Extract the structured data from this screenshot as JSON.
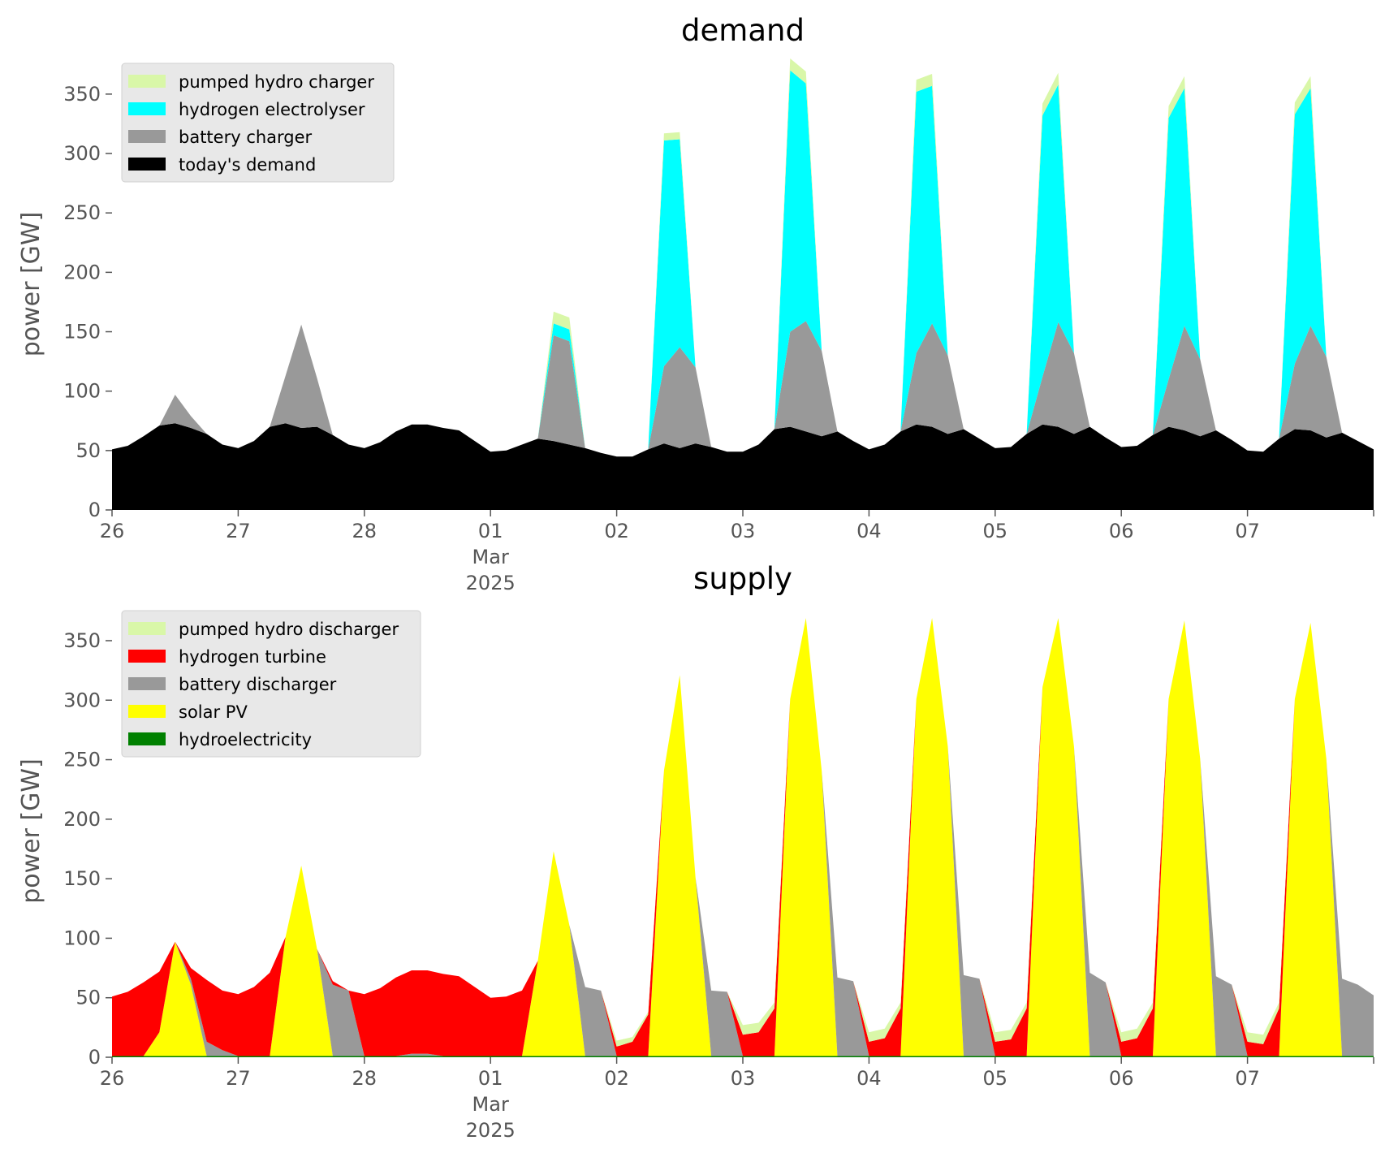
{
  "chart_data": [
    {
      "type": "area",
      "title": "demand",
      "ylabel": "power [GW]",
      "xlabel": "",
      "ylim": [
        0,
        380
      ],
      "yticks": [
        0,
        50,
        100,
        150,
        200,
        250,
        300,
        350
      ],
      "xlim": [
        "2025-02-26",
        "2025-03-08"
      ],
      "xticks": [
        {
          "date": "2025-02-26",
          "label": "26"
        },
        {
          "date": "2025-02-27",
          "label": "27"
        },
        {
          "date": "2025-02-28",
          "label": "28"
        },
        {
          "date": "2025-03-01",
          "label": "01",
          "sub1": "Mar",
          "sub2": "2025"
        },
        {
          "date": "2025-03-02",
          "label": "02"
        },
        {
          "date": "2025-03-03",
          "label": "03"
        },
        {
          "date": "2025-03-04",
          "label": "04"
        },
        {
          "date": "2025-03-05",
          "label": "05"
        },
        {
          "date": "2025-03-06",
          "label": "06"
        },
        {
          "date": "2025-03-07",
          "label": "07"
        }
      ],
      "grid": false,
      "legend_position": "top-left",
      "legend": [
        "pumped hydro charger",
        "hydrogen electrolyser",
        "battery charger",
        "today's demand"
      ],
      "x_date_start": "2025-02-26",
      "x_step_hours": 3,
      "series": [
        {
          "name": "today's demand",
          "color": "#000000",
          "values": [
            51,
            54,
            62,
            71,
            73,
            69,
            64,
            55,
            52,
            58,
            70,
            73,
            69,
            70,
            63,
            55,
            52,
            57,
            66,
            72,
            72,
            69,
            67,
            58,
            49,
            50,
            55,
            60,
            58,
            55,
            52,
            48,
            45,
            45,
            51,
            56,
            52,
            56,
            53,
            49,
            49,
            55,
            68,
            70,
            66,
            62,
            66,
            58,
            51,
            55,
            66,
            72,
            70,
            64,
            68,
            60,
            52,
            53,
            64,
            72,
            70,
            64,
            70,
            61,
            53,
            54,
            63,
            70,
            67,
            62,
            67,
            59,
            50,
            49,
            60,
            68,
            67,
            61,
            65,
            58,
            51
          ]
        },
        {
          "name": "battery charger",
          "color": "#999999",
          "values": [
            0,
            0,
            0,
            0,
            24,
            10,
            0,
            0,
            0,
            0,
            0,
            40,
            87,
            41,
            0,
            0,
            0,
            0,
            0,
            0,
            0,
            0,
            0,
            0,
            0,
            0,
            0,
            0,
            89,
            87,
            0,
            0,
            0,
            0,
            0,
            65,
            85,
            64,
            0,
            0,
            0,
            0,
            0,
            80,
            93,
            72,
            0,
            0,
            0,
            0,
            0,
            60,
            87,
            66,
            0,
            0,
            0,
            0,
            0,
            40,
            88,
            68,
            0,
            0,
            0,
            0,
            0,
            40,
            88,
            65,
            0,
            0,
            0,
            0,
            0,
            55,
            88,
            68,
            0,
            0,
            0
          ]
        },
        {
          "name": "hydrogen electrolyser",
          "color": "#00ffff",
          "values": [
            0,
            0,
            0,
            0,
            0,
            0,
            0,
            0,
            0,
            0,
            0,
            0,
            0,
            0,
            0,
            0,
            0,
            0,
            0,
            0,
            0,
            0,
            0,
            0,
            0,
            0,
            0,
            0,
            10,
            10,
            0,
            0,
            0,
            0,
            0,
            190,
            175,
            0,
            0,
            0,
            0,
            0,
            0,
            220,
            200,
            0,
            0,
            0,
            0,
            0,
            0,
            220,
            200,
            0,
            0,
            0,
            0,
            0,
            0,
            220,
            200,
            0,
            0,
            0,
            0,
            0,
            0,
            220,
            200,
            0,
            0,
            0,
            0,
            0,
            0,
            210,
            200,
            0,
            0,
            0,
            0
          ]
        },
        {
          "name": "pumped hydro charger",
          "color": "#d9f7a8",
          "values": [
            0,
            0,
            0,
            0,
            0,
            0,
            0,
            0,
            0,
            0,
            0,
            0,
            0,
            0,
            0,
            0,
            0,
            0,
            0,
            0,
            0,
            0,
            0,
            0,
            0,
            0,
            0,
            0,
            10,
            10,
            0,
            0,
            0,
            0,
            0,
            6,
            6,
            0,
            0,
            0,
            0,
            0,
            0,
            10,
            10,
            0,
            0,
            0,
            0,
            0,
            0,
            10,
            10,
            0,
            0,
            0,
            0,
            0,
            0,
            10,
            10,
            0,
            0,
            0,
            0,
            0,
            0,
            10,
            10,
            0,
            0,
            0,
            0,
            0,
            0,
            10,
            10,
            0,
            0,
            0,
            0
          ]
        }
      ]
    },
    {
      "type": "area",
      "title": "supply",
      "ylabel": "power [GW]",
      "xlabel": "",
      "ylim": [
        0,
        380
      ],
      "yticks": [
        0,
        50,
        100,
        150,
        200,
        250,
        300,
        350
      ],
      "xlim": [
        "2025-02-26",
        "2025-03-08"
      ],
      "xticks": [
        {
          "date": "2025-02-26",
          "label": "26"
        },
        {
          "date": "2025-02-27",
          "label": "27"
        },
        {
          "date": "2025-02-28",
          "label": "28"
        },
        {
          "date": "2025-03-01",
          "label": "01",
          "sub1": "Mar",
          "sub2": "2025"
        },
        {
          "date": "2025-03-02",
          "label": "02"
        },
        {
          "date": "2025-03-03",
          "label": "03"
        },
        {
          "date": "2025-03-04",
          "label": "04"
        },
        {
          "date": "2025-03-05",
          "label": "05"
        },
        {
          "date": "2025-03-06",
          "label": "06"
        },
        {
          "date": "2025-03-07",
          "label": "07"
        }
      ],
      "grid": false,
      "legend_position": "top-left",
      "legend": [
        "pumped hydro discharger",
        "hydrogen turbine",
        "battery discharger",
        "solar PV",
        "hydroelectricity"
      ],
      "x_date_start": "2025-02-26",
      "x_step_hours": 3,
      "series": [
        {
          "name": "hydroelectricity",
          "color": "#008000",
          "values": [
            1,
            1,
            1,
            1,
            1,
            1,
            1,
            1,
            1,
            1,
            1,
            1,
            1,
            1,
            1,
            1,
            1,
            1,
            1,
            1,
            1,
            1,
            1,
            1,
            1,
            1,
            1,
            1,
            1,
            1,
            1,
            1,
            1,
            1,
            1,
            1,
            1,
            1,
            1,
            1,
            1,
            1,
            1,
            1,
            1,
            1,
            1,
            1,
            1,
            1,
            1,
            1,
            1,
            1,
            1,
            1,
            1,
            1,
            1,
            1,
            1,
            1,
            1,
            1,
            1,
            1,
            1,
            1,
            1,
            1,
            1,
            1,
            1,
            1,
            1,
            1,
            1,
            1,
            1,
            1,
            1
          ]
        },
        {
          "name": "solar PV",
          "color": "#ffff00",
          "values": [
            0,
            0,
            0,
            20,
            96,
            60,
            0,
            0,
            0,
            0,
            0,
            100,
            160,
            90,
            0,
            0,
            0,
            0,
            0,
            0,
            0,
            0,
            0,
            0,
            0,
            0,
            0,
            80,
            172,
            110,
            0,
            0,
            0,
            0,
            0,
            240,
            320,
            150,
            0,
            0,
            0,
            0,
            0,
            300,
            368,
            240,
            0,
            0,
            0,
            0,
            0,
            300,
            368,
            260,
            0,
            0,
            0,
            0,
            0,
            310,
            368,
            260,
            0,
            0,
            0,
            0,
            0,
            300,
            366,
            250,
            0,
            0,
            0,
            0,
            0,
            300,
            364,
            250,
            0,
            0,
            0
          ]
        },
        {
          "name": "battery discharger",
          "color": "#999999",
          "values": [
            0,
            0,
            0,
            0,
            0,
            5,
            12,
            5,
            0,
            0,
            0,
            0,
            0,
            0,
            60,
            55,
            0,
            0,
            0,
            2,
            2,
            0,
            0,
            0,
            0,
            0,
            0,
            0,
            0,
            0,
            58,
            55,
            0,
            0,
            0,
            0,
            0,
            0,
            55,
            54,
            0,
            0,
            0,
            0,
            0,
            0,
            66,
            63,
            0,
            0,
            0,
            0,
            0,
            0,
            68,
            65,
            0,
            0,
            0,
            0,
            0,
            0,
            70,
            62,
            0,
            0,
            0,
            0,
            0,
            0,
            67,
            60,
            0,
            0,
            0,
            0,
            0,
            0,
            65,
            60,
            51
          ]
        },
        {
          "name": "hydrogen turbine",
          "color": "#ff0000",
          "values": [
            50,
            54,
            62,
            51,
            0,
            9,
            52,
            50,
            52,
            58,
            70,
            0,
            0,
            0,
            3,
            0,
            52,
            57,
            66,
            70,
            70,
            69,
            67,
            58,
            49,
            50,
            55,
            0,
            0,
            0,
            0,
            0,
            8,
            12,
            35,
            0,
            0,
            0,
            0,
            0,
            18,
            20,
            40,
            0,
            0,
            0,
            0,
            0,
            12,
            15,
            40,
            0,
            0,
            0,
            0,
            0,
            12,
            14,
            40,
            0,
            0,
            0,
            0,
            0,
            12,
            15,
            40,
            0,
            0,
            0,
            0,
            0,
            12,
            10,
            40,
            0,
            0,
            0,
            0,
            0,
            0
          ]
        },
        {
          "name": "pumped hydro discharger",
          "color": "#d9f7a8",
          "values": [
            0,
            0,
            0,
            0,
            0,
            0,
            0,
            0,
            0,
            0,
            0,
            0,
            0,
            0,
            0,
            0,
            0,
            0,
            0,
            0,
            0,
            0,
            0,
            0,
            0,
            0,
            0,
            0,
            0,
            0,
            0,
            0,
            5,
            4,
            2,
            0,
            0,
            0,
            0,
            0,
            8,
            8,
            5,
            0,
            0,
            0,
            0,
            0,
            8,
            8,
            5,
            0,
            0,
            0,
            0,
            0,
            8,
            8,
            5,
            0,
            0,
            0,
            0,
            0,
            8,
            8,
            5,
            0,
            0,
            0,
            0,
            0,
            8,
            8,
            5,
            0,
            0,
            0,
            0,
            0,
            0
          ]
        }
      ]
    }
  ]
}
